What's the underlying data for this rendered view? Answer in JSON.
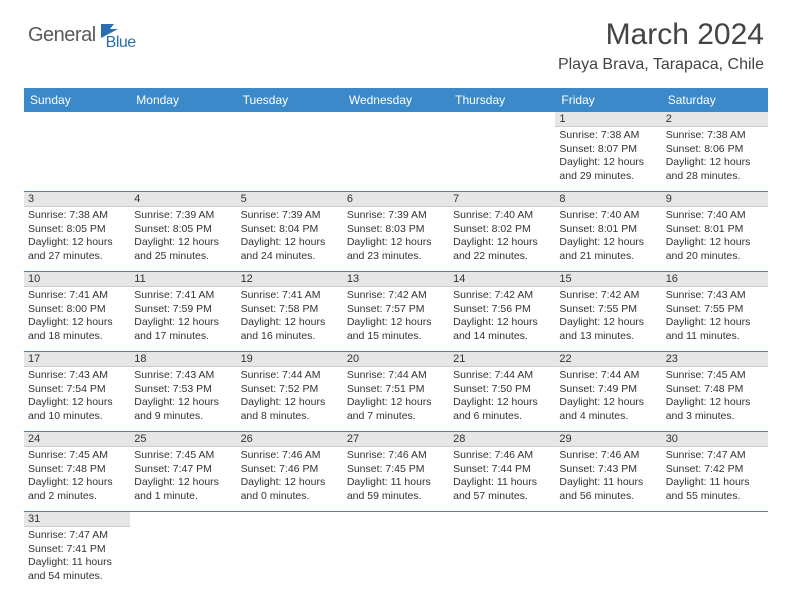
{
  "brand": {
    "part1": "General",
    "part2": "Blue"
  },
  "title": "March 2024",
  "location": "Playa Brava, Tarapaca, Chile",
  "colors": {
    "header_bg": "#3b89c9",
    "header_fg": "#ffffff",
    "daynum_bg": "#e6e6e6",
    "cell_border": "#3b89c9",
    "text": "#333333",
    "brand_gray": "#5a5a5a",
    "brand_blue": "#2a6db3"
  },
  "weekdays": [
    "Sunday",
    "Monday",
    "Tuesday",
    "Wednesday",
    "Thursday",
    "Friday",
    "Saturday"
  ],
  "weeks": [
    [
      null,
      null,
      null,
      null,
      null,
      {
        "d": "1",
        "sr": "7:38 AM",
        "ss": "8:07 PM",
        "dl": "12 hours and 29 minutes."
      },
      {
        "d": "2",
        "sr": "7:38 AM",
        "ss": "8:06 PM",
        "dl": "12 hours and 28 minutes."
      }
    ],
    [
      {
        "d": "3",
        "sr": "7:38 AM",
        "ss": "8:05 PM",
        "dl": "12 hours and 27 minutes."
      },
      {
        "d": "4",
        "sr": "7:39 AM",
        "ss": "8:05 PM",
        "dl": "12 hours and 25 minutes."
      },
      {
        "d": "5",
        "sr": "7:39 AM",
        "ss": "8:04 PM",
        "dl": "12 hours and 24 minutes."
      },
      {
        "d": "6",
        "sr": "7:39 AM",
        "ss": "8:03 PM",
        "dl": "12 hours and 23 minutes."
      },
      {
        "d": "7",
        "sr": "7:40 AM",
        "ss": "8:02 PM",
        "dl": "12 hours and 22 minutes."
      },
      {
        "d": "8",
        "sr": "7:40 AM",
        "ss": "8:01 PM",
        "dl": "12 hours and 21 minutes."
      },
      {
        "d": "9",
        "sr": "7:40 AM",
        "ss": "8:01 PM",
        "dl": "12 hours and 20 minutes."
      }
    ],
    [
      {
        "d": "10",
        "sr": "7:41 AM",
        "ss": "8:00 PM",
        "dl": "12 hours and 18 minutes."
      },
      {
        "d": "11",
        "sr": "7:41 AM",
        "ss": "7:59 PM",
        "dl": "12 hours and 17 minutes."
      },
      {
        "d": "12",
        "sr": "7:41 AM",
        "ss": "7:58 PM",
        "dl": "12 hours and 16 minutes."
      },
      {
        "d": "13",
        "sr": "7:42 AM",
        "ss": "7:57 PM",
        "dl": "12 hours and 15 minutes."
      },
      {
        "d": "14",
        "sr": "7:42 AM",
        "ss": "7:56 PM",
        "dl": "12 hours and 14 minutes."
      },
      {
        "d": "15",
        "sr": "7:42 AM",
        "ss": "7:55 PM",
        "dl": "12 hours and 13 minutes."
      },
      {
        "d": "16",
        "sr": "7:43 AM",
        "ss": "7:55 PM",
        "dl": "12 hours and 11 minutes."
      }
    ],
    [
      {
        "d": "17",
        "sr": "7:43 AM",
        "ss": "7:54 PM",
        "dl": "12 hours and 10 minutes."
      },
      {
        "d": "18",
        "sr": "7:43 AM",
        "ss": "7:53 PM",
        "dl": "12 hours and 9 minutes."
      },
      {
        "d": "19",
        "sr": "7:44 AM",
        "ss": "7:52 PM",
        "dl": "12 hours and 8 minutes."
      },
      {
        "d": "20",
        "sr": "7:44 AM",
        "ss": "7:51 PM",
        "dl": "12 hours and 7 minutes."
      },
      {
        "d": "21",
        "sr": "7:44 AM",
        "ss": "7:50 PM",
        "dl": "12 hours and 6 minutes."
      },
      {
        "d": "22",
        "sr": "7:44 AM",
        "ss": "7:49 PM",
        "dl": "12 hours and 4 minutes."
      },
      {
        "d": "23",
        "sr": "7:45 AM",
        "ss": "7:48 PM",
        "dl": "12 hours and 3 minutes."
      }
    ],
    [
      {
        "d": "24",
        "sr": "7:45 AM",
        "ss": "7:48 PM",
        "dl": "12 hours and 2 minutes."
      },
      {
        "d": "25",
        "sr": "7:45 AM",
        "ss": "7:47 PM",
        "dl": "12 hours and 1 minute."
      },
      {
        "d": "26",
        "sr": "7:46 AM",
        "ss": "7:46 PM",
        "dl": "12 hours and 0 minutes."
      },
      {
        "d": "27",
        "sr": "7:46 AM",
        "ss": "7:45 PM",
        "dl": "11 hours and 59 minutes."
      },
      {
        "d": "28",
        "sr": "7:46 AM",
        "ss": "7:44 PM",
        "dl": "11 hours and 57 minutes."
      },
      {
        "d": "29",
        "sr": "7:46 AM",
        "ss": "7:43 PM",
        "dl": "11 hours and 56 minutes."
      },
      {
        "d": "30",
        "sr": "7:47 AM",
        "ss": "7:42 PM",
        "dl": "11 hours and 55 minutes."
      }
    ],
    [
      {
        "d": "31",
        "sr": "7:47 AM",
        "ss": "7:41 PM",
        "dl": "11 hours and 54 minutes."
      },
      null,
      null,
      null,
      null,
      null,
      null
    ]
  ]
}
